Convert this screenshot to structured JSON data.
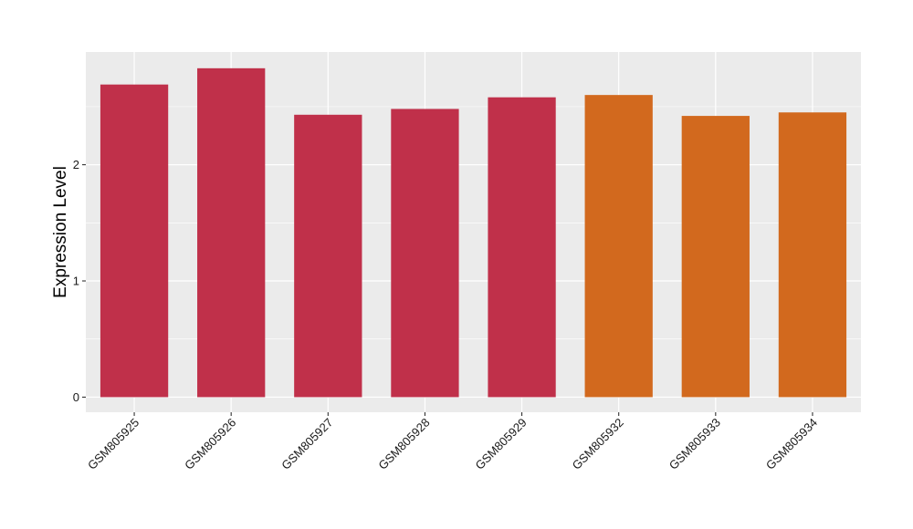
{
  "chart_data": {
    "type": "bar",
    "title": "",
    "xlabel": "",
    "ylabel": "Expression Level",
    "categories": [
      "GSM805925",
      "GSM805926",
      "GSM805927",
      "GSM805928",
      "GSM805929",
      "GSM805932",
      "GSM805933",
      "GSM805934"
    ],
    "values": [
      2.69,
      2.83,
      2.43,
      2.48,
      2.58,
      2.6,
      2.42,
      2.45
    ],
    "bar_colors": [
      "#c0304a",
      "#c0304a",
      "#c0304a",
      "#c0304a",
      "#c0304a",
      "#d2691e",
      "#d2691e",
      "#d2691e"
    ],
    "yticks": [
      0,
      1,
      2
    ],
    "ylim": [
      -0.13,
      2.97
    ],
    "grid": true,
    "legend": "none",
    "panel_background": "#ebebeb",
    "grid_color": "#ffffff"
  }
}
